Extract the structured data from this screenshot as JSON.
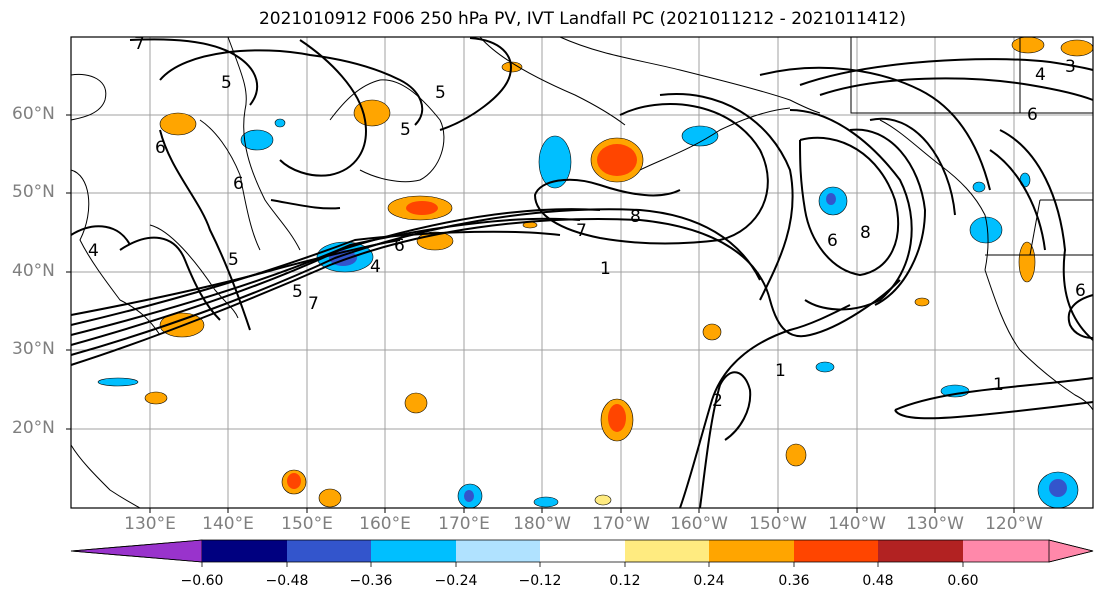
{
  "title": "2021010912 F006 250 hPa PV, IVT Landfall PC (2021011212 - 2021011412)",
  "lat_labels": [
    "60°N",
    "50°N",
    "40°N",
    "30°N",
    "20°N"
  ],
  "lon_labels": [
    "130°E",
    "140°E",
    "150°E",
    "160°E",
    "170°E",
    "180°W",
    "170°W",
    "160°W",
    "150°W",
    "140°W",
    "130°W",
    "120°W"
  ],
  "colorbar": {
    "ticks": [
      "−0.60",
      "−0.48",
      "−0.36",
      "−0.24",
      "−0.12",
      "0.12",
      "0.24",
      "0.36",
      "0.48",
      "0.60"
    ],
    "colors": [
      "#9933cc",
      "#000080",
      "#3355cc",
      "#00bfff",
      "#b0e2ff",
      "#ffffff",
      "#ffeb80",
      "#ffa500",
      "#ff4500",
      "#b22222",
      "#ff88aa"
    ]
  },
  "contour_labels": [
    "7",
    "5",
    "5",
    "6",
    "5",
    "6",
    "4",
    "6",
    "4",
    "5",
    "5",
    "7",
    "7",
    "8",
    "1",
    "6",
    "8",
    "1",
    "2",
    "1",
    "4",
    "3",
    "6",
    "6"
  ],
  "colors": {
    "contour": "#000000",
    "coast": "#000000",
    "grid": "#a0a0a0"
  }
}
